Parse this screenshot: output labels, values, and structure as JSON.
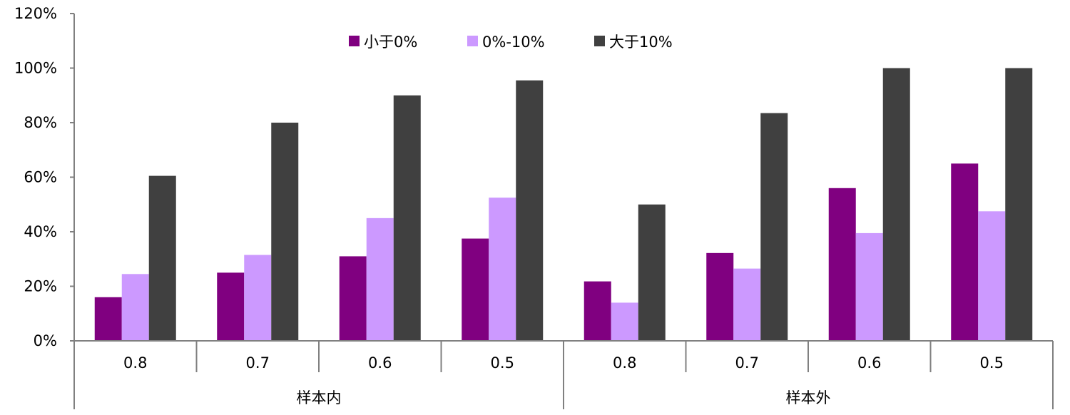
{
  "chart_data": {
    "type": "bar",
    "title": "",
    "xlabel": "",
    "ylabel": "",
    "ylim": [
      0,
      120
    ],
    "yticks": [
      "0%",
      "20%",
      "40%",
      "60%",
      "80%",
      "100%",
      "120%"
    ],
    "groups": [
      {
        "label": "样本内",
        "categories": [
          "0.8",
          "0.7",
          "0.6",
          "0.5"
        ]
      },
      {
        "label": "样本外",
        "categories": [
          "0.8",
          "0.7",
          "0.6",
          "0.5"
        ]
      }
    ],
    "series": [
      {
        "name": "小于0%",
        "color": "#800080",
        "values": [
          16,
          25,
          31,
          37.5,
          21.8,
          32.2,
          56,
          65
        ]
      },
      {
        "name": "0%-10%",
        "color": "#CC99FF",
        "values": [
          24.5,
          31.5,
          45,
          52.5,
          14,
          26.5,
          39.5,
          47.5
        ]
      },
      {
        "name": "大于10%",
        "color": "#404040",
        "values": [
          60.5,
          80,
          90,
          95.5,
          50,
          83.5,
          100,
          100
        ]
      }
    ],
    "legend_position": "top-center",
    "grid": false
  }
}
